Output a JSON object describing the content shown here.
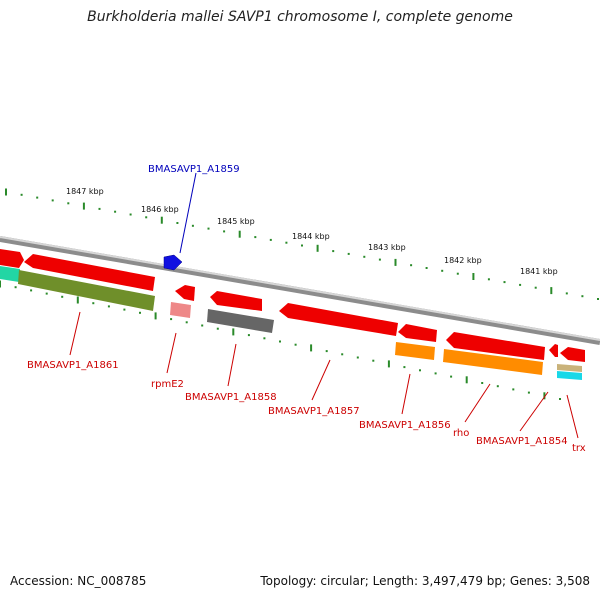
{
  "title": "Burkholderia mallei SAVP1 chromosome I, complete genome",
  "accession_text": "Accession: NC_008785",
  "summary_text": "Topology: circular; Length: 3,497,479 bp; Genes: 3,508",
  "colors": {
    "backbone": "#8c8c8c",
    "tick": "#2a8a2a",
    "forward_gene": "#ee0000",
    "label_red": "#cc0000",
    "label_blue": "#0000bb"
  },
  "kbp_ticks": [
    {
      "label": "1847 kbp",
      "kbp": 1847
    },
    {
      "label": "1846 kbp",
      "kbp": 1846
    },
    {
      "label": "1845 kbp",
      "kbp": 1845
    },
    {
      "label": "1844 kbp",
      "kbp": 1844
    },
    {
      "label": "1843 kbp",
      "kbp": 1843
    },
    {
      "label": "1842 kbp",
      "kbp": 1842
    },
    {
      "label": "1841 kbp",
      "kbp": 1841
    }
  ],
  "genes": [
    {
      "label": "BMASAVP1_A1861",
      "label_color": "#cc0000"
    },
    {
      "label": "rpmE2",
      "label_color": "#cc0000"
    },
    {
      "label": "BMASAVP1_A1858",
      "label_color": "#cc0000"
    },
    {
      "label": "BMASAVP1_A1857",
      "label_color": "#cc0000"
    },
    {
      "label": "BMASAVP1_A1856",
      "label_color": "#cc0000"
    },
    {
      "label": "rho",
      "label_color": "#cc0000"
    },
    {
      "label": "BMASAVP1_A1854",
      "label_color": "#cc0000"
    },
    {
      "label": "trx",
      "label_color": "#cc0000"
    },
    {
      "label": "BMASAVP1_A1859",
      "label_color": "#0000bb"
    }
  ]
}
